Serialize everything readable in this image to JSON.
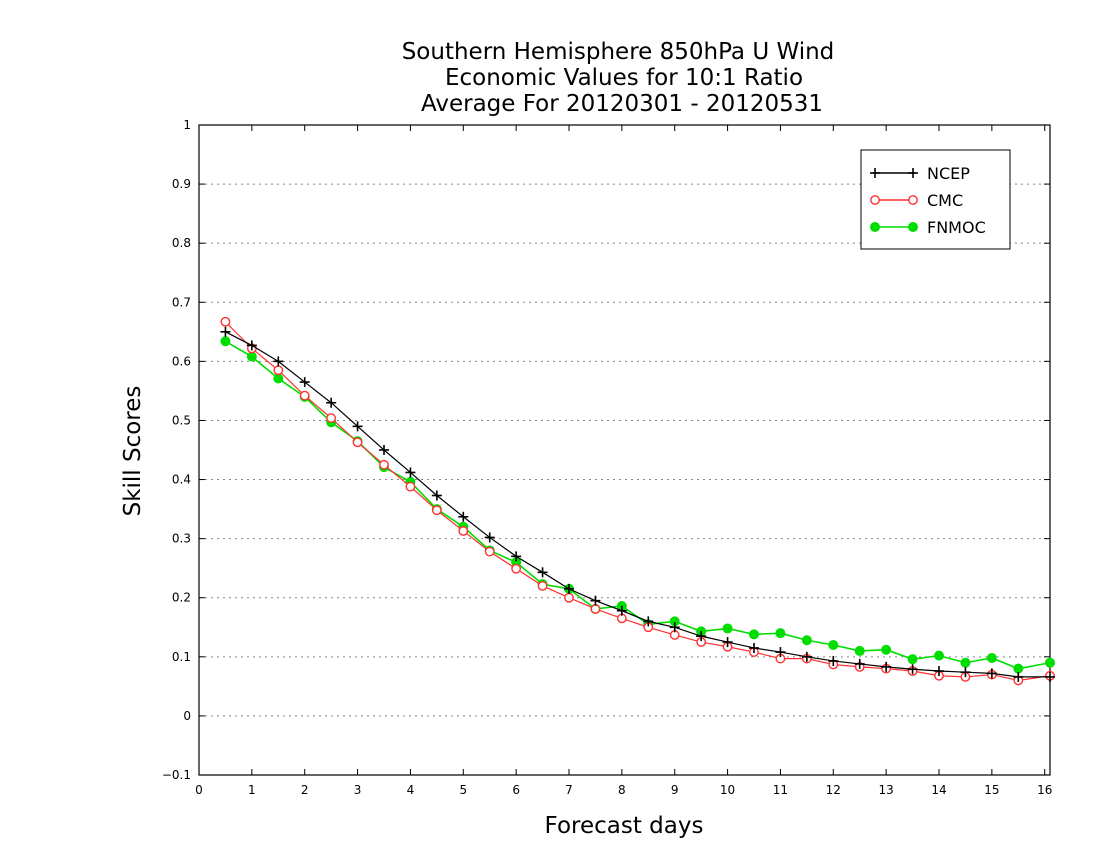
{
  "chart_data": {
    "type": "line",
    "title": [
      "Southern Hemisphere 850hPa U Wind",
      "Economic Values for 10:1 Ratio",
      "Average For 20120301 - 20120531"
    ],
    "xlabel": "Forecast days",
    "ylabel": "Skill Scores",
    "xlim": [
      0,
      16.1
    ],
    "ylim": [
      -0.1,
      1
    ],
    "xticks": [
      "0",
      "1",
      "2",
      "3",
      "4",
      "5",
      "6",
      "7",
      "8",
      "9",
      "10",
      "11",
      "12",
      "13",
      "14",
      "15",
      "16"
    ],
    "yticks": [
      "−0.1",
      "0",
      "0.1",
      "0.2",
      "0.3",
      "0.4",
      "0.5",
      "0.6",
      "0.7",
      "0.8",
      "0.9",
      "1"
    ],
    "grid": "horizontal dotted",
    "legend": "top-right",
    "x": [
      0.5,
      1,
      1.5,
      2,
      2.5,
      3,
      3.5,
      4,
      4.5,
      5,
      5.5,
      6,
      6.5,
      7,
      7.5,
      8,
      8.5,
      9,
      9.5,
      10,
      10.5,
      11,
      11.5,
      12,
      12.5,
      13,
      13.5,
      14,
      14.5,
      15,
      15.5,
      16.1
    ],
    "series": [
      {
        "name": "NCEP",
        "color": "#000000",
        "marker": "plus",
        "values": [
          0.65,
          0.627,
          0.6,
          0.565,
          0.53,
          0.49,
          0.45,
          0.412,
          0.373,
          0.337,
          0.302,
          0.27,
          0.243,
          0.215,
          0.195,
          0.178,
          0.16,
          0.15,
          0.135,
          0.125,
          0.115,
          0.108,
          0.1,
          0.093,
          0.088,
          0.083,
          0.079,
          0.076,
          0.074,
          0.072,
          0.066,
          0.066
        ]
      },
      {
        "name": "CMC",
        "color": "#ff3030",
        "marker": "open-circle",
        "values": [
          0.667,
          0.622,
          0.585,
          0.542,
          0.504,
          0.463,
          0.425,
          0.388,
          0.348,
          0.313,
          0.278,
          0.249,
          0.22,
          0.2,
          0.181,
          0.165,
          0.15,
          0.137,
          0.125,
          0.117,
          0.108,
          0.097,
          0.097,
          0.087,
          0.083,
          0.08,
          0.076,
          0.068,
          0.066,
          0.07,
          0.06,
          0.068
        ]
      },
      {
        "name": "FNMOC",
        "color": "#00dd00",
        "marker": "filled-circle",
        "values": [
          0.634,
          0.608,
          0.571,
          0.54,
          0.497,
          0.465,
          0.421,
          0.396,
          0.35,
          0.32,
          0.28,
          0.26,
          0.223,
          0.215,
          0.181,
          0.186,
          0.155,
          0.16,
          0.143,
          0.148,
          0.138,
          0.14,
          0.128,
          0.12,
          0.11,
          0.112,
          0.096,
          0.102,
          0.09,
          0.098,
          0.08,
          0.09
        ]
      }
    ]
  }
}
